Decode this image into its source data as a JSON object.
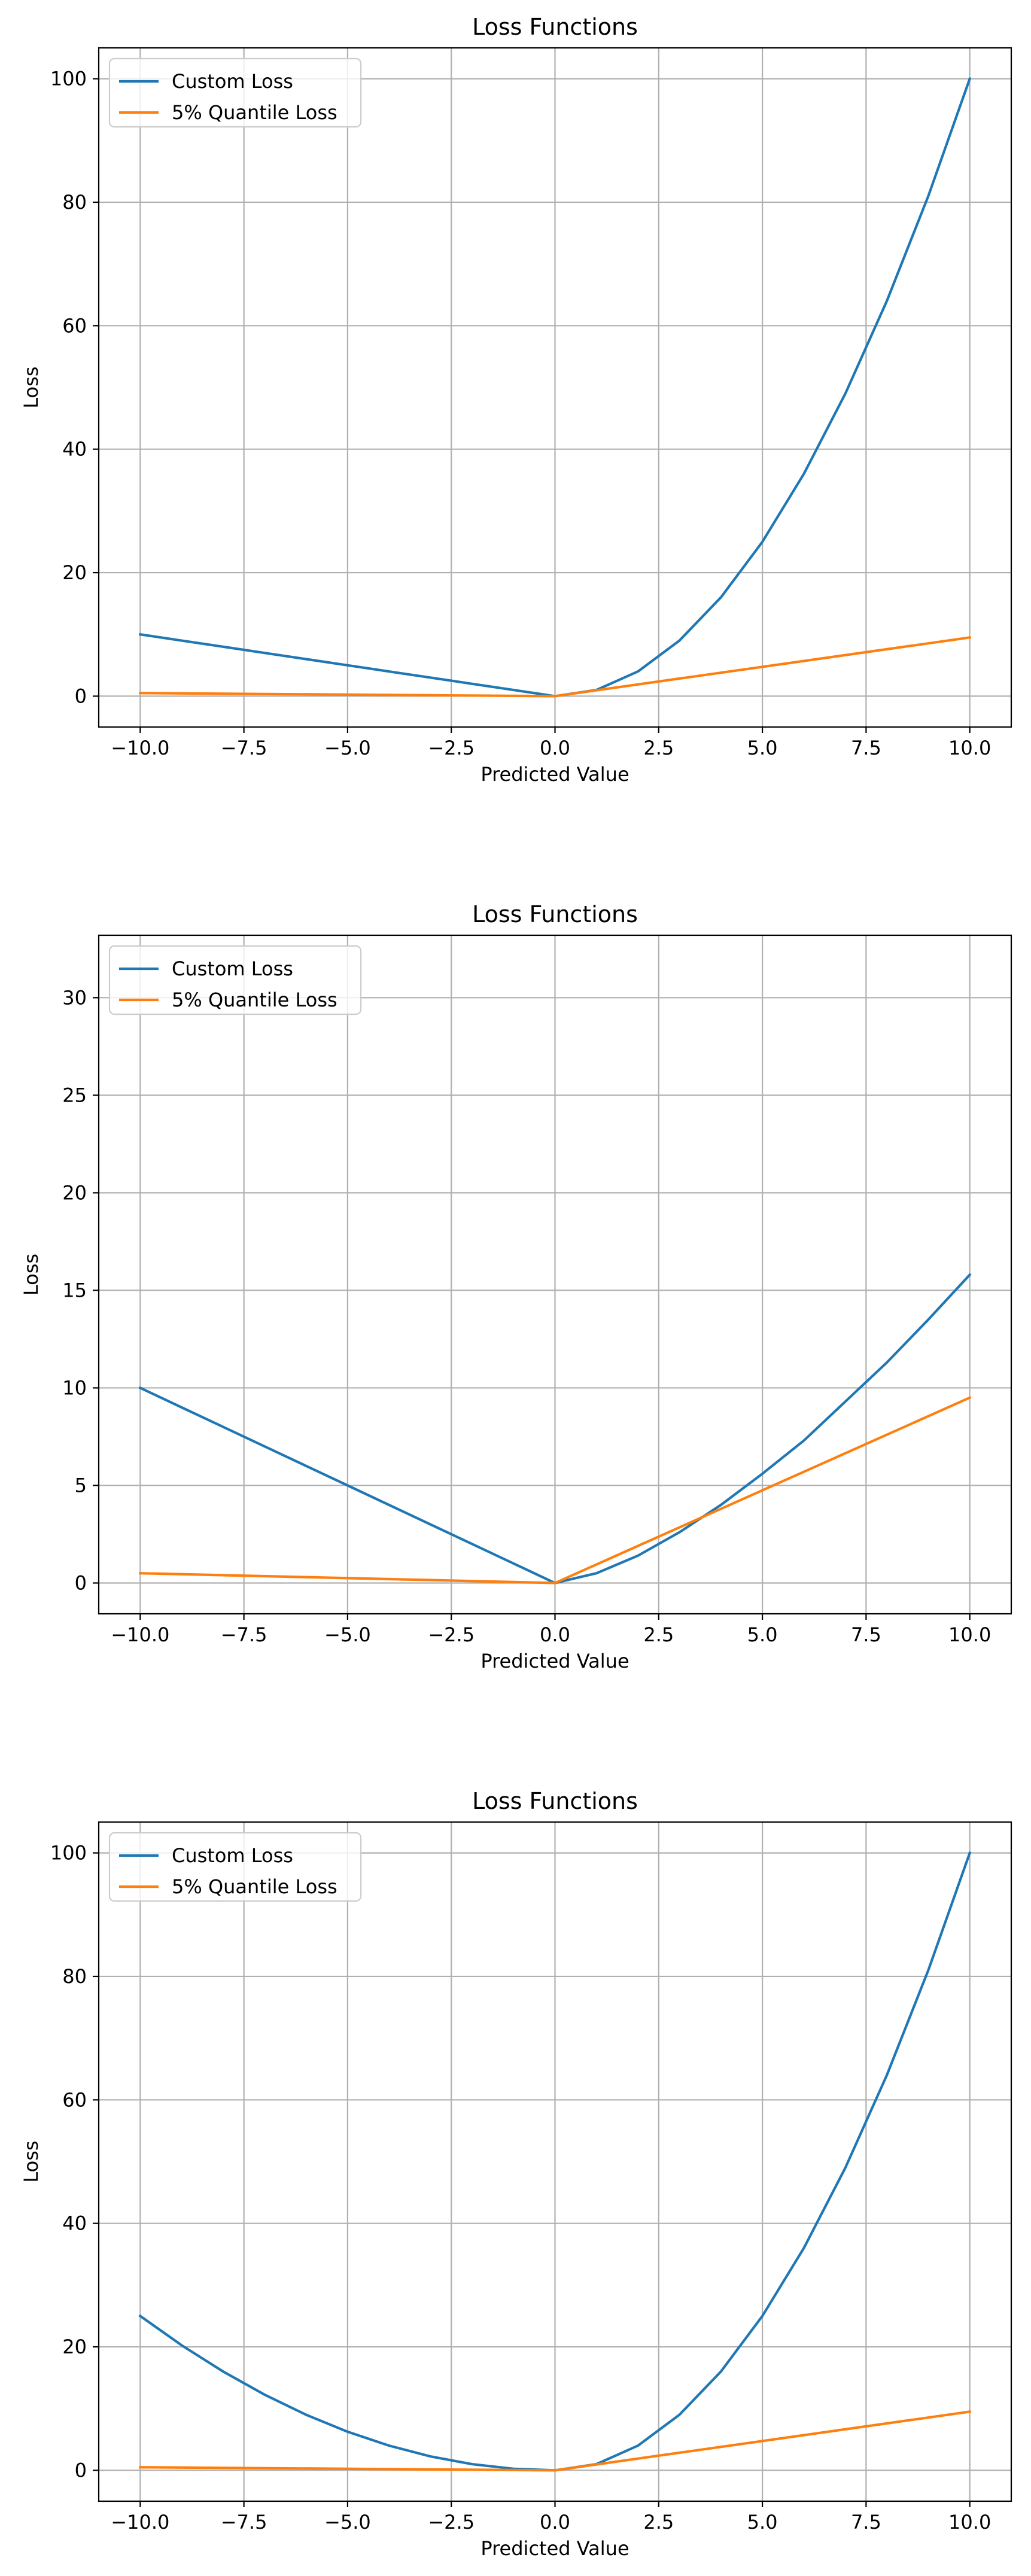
{
  "chart_data": [
    {
      "type": "line",
      "title": "Loss Functions",
      "xlabel": "Predicted Value",
      "ylabel": "Loss",
      "xlim": [
        -11.0,
        11.0
      ],
      "ylim": [
        -5.0,
        105.0
      ],
      "xticks": [
        -10.0,
        -7.5,
        -5.0,
        -2.5,
        0.0,
        2.5,
        5.0,
        7.5,
        10.0
      ],
      "xtick_labels": [
        "−10.0",
        "−7.5",
        "−5.0",
        "−2.5",
        "0.0",
        "2.5",
        "5.0",
        "7.5",
        "10.0"
      ],
      "yticks": [
        0,
        20,
        40,
        60,
        80,
        100
      ],
      "ytick_labels": [
        "0",
        "20",
        "40",
        "60",
        "80",
        "100"
      ],
      "grid": true,
      "legend_position": "upper-left",
      "series": [
        {
          "name": "Custom Loss",
          "color": "#1f77b4",
          "x": [
            -10,
            -9,
            -8,
            -7,
            -6,
            -5,
            -4,
            -3,
            -2,
            -1,
            0,
            1,
            2,
            3,
            4,
            5,
            6,
            7,
            8,
            9,
            10
          ],
          "values": [
            10,
            9,
            8,
            7,
            6,
            5,
            4,
            3,
            2,
            1,
            0,
            1,
            4,
            9,
            16,
            25,
            36,
            49,
            64,
            81,
            100
          ]
        },
        {
          "name": "5% Quantile Loss",
          "color": "#ff7f0e",
          "x": [
            -10,
            0,
            10
          ],
          "values": [
            0.5,
            0,
            9.5
          ]
        }
      ]
    },
    {
      "type": "line",
      "title": "Loss Functions",
      "xlabel": "Predicted Value",
      "ylabel": "Loss",
      "xlim": [
        -11.0,
        11.0
      ],
      "ylim": [
        -1.58,
        33.2
      ],
      "xticks": [
        -10.0,
        -7.5,
        -5.0,
        -2.5,
        0.0,
        2.5,
        5.0,
        7.5,
        10.0
      ],
      "xtick_labels": [
        "−10.0",
        "−7.5",
        "−5.0",
        "−2.5",
        "0.0",
        "2.5",
        "5.0",
        "7.5",
        "10.0"
      ],
      "yticks": [
        0,
        5,
        10,
        15,
        20,
        25,
        30
      ],
      "ytick_labels": [
        "0",
        "5",
        "10",
        "15",
        "20",
        "25",
        "30"
      ],
      "grid": true,
      "legend_position": "upper-left",
      "series": [
        {
          "name": "Custom Loss",
          "color": "#1f77b4",
          "x": [
            -10,
            -9,
            -8,
            -7,
            -6,
            -5,
            -4,
            -3,
            -2,
            -1,
            0,
            1,
            2,
            3,
            4,
            5,
            6,
            7,
            8,
            9,
            10
          ],
          "values": [
            10,
            9,
            8,
            7,
            6,
            5,
            4,
            3,
            2,
            1,
            0,
            0.5,
            1.4,
            2.6,
            4.0,
            5.6,
            7.3,
            9.3,
            11.3,
            13.5,
            15.8
          ]
        },
        {
          "name": "5% Quantile Loss",
          "color": "#ff7f0e",
          "x": [
            -10,
            0,
            10
          ],
          "values": [
            0.5,
            0,
            9.5
          ]
        }
      ]
    },
    {
      "type": "line",
      "title": "Loss Functions",
      "xlabel": "Predicted Value",
      "ylabel": "Loss",
      "xlim": [
        -11.0,
        11.0
      ],
      "ylim": [
        -5.0,
        105.0
      ],
      "xticks": [
        -10.0,
        -7.5,
        -5.0,
        -2.5,
        0.0,
        2.5,
        5.0,
        7.5,
        10.0
      ],
      "xtick_labels": [
        "−10.0",
        "−7.5",
        "−5.0",
        "−2.5",
        "0.0",
        "2.5",
        "5.0",
        "7.5",
        "10.0"
      ],
      "yticks": [
        0,
        20,
        40,
        60,
        80,
        100
      ],
      "ytick_labels": [
        "0",
        "20",
        "40",
        "60",
        "80",
        "100"
      ],
      "grid": true,
      "legend_position": "upper-left",
      "series": [
        {
          "name": "Custom Loss",
          "color": "#1f77b4",
          "x": [
            -10,
            -9,
            -8,
            -7,
            -6,
            -5,
            -4,
            -3,
            -2,
            -1,
            0,
            1,
            2,
            3,
            4,
            5,
            6,
            7,
            8,
            9,
            10
          ],
          "values": [
            25,
            20.25,
            16,
            12.25,
            9,
            6.25,
            4,
            2.25,
            1,
            0.25,
            0,
            1,
            4,
            9,
            16,
            25,
            36,
            49,
            64,
            81,
            100
          ]
        },
        {
          "name": "5% Quantile Loss",
          "color": "#ff7f0e",
          "x": [
            -10,
            0,
            10
          ],
          "values": [
            0.5,
            0,
            9.5
          ]
        }
      ]
    }
  ]
}
